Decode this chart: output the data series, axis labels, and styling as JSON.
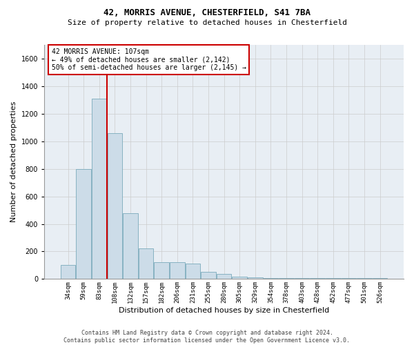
{
  "title1": "42, MORRIS AVENUE, CHESTERFIELD, S41 7BA",
  "title2": "Size of property relative to detached houses in Chesterfield",
  "xlabel": "Distribution of detached houses by size in Chesterfield",
  "ylabel": "Number of detached properties",
  "footer1": "Contains HM Land Registry data © Crown copyright and database right 2024.",
  "footer2": "Contains public sector information licensed under the Open Government Licence v3.0.",
  "annotation_title": "42 MORRIS AVENUE: 107sqm",
  "annotation_line1": "← 49% of detached houses are smaller (2,142)",
  "annotation_line2": "50% of semi-detached houses are larger (2,145) →",
  "bar_color": "#ccdce8",
  "bar_edge_color": "#7aaabb",
  "grid_color": "#cccccc",
  "bg_color": "#e8eef4",
  "vline_color": "#cc0000",
  "annotation_box_color": "#cc0000",
  "categories": [
    "34sqm",
    "59sqm",
    "83sqm",
    "108sqm",
    "132sqm",
    "157sqm",
    "182sqm",
    "206sqm",
    "231sqm",
    "255sqm",
    "280sqm",
    "305sqm",
    "329sqm",
    "354sqm",
    "378sqm",
    "403sqm",
    "428sqm",
    "452sqm",
    "477sqm",
    "501sqm",
    "526sqm"
  ],
  "values": [
    100,
    800,
    1310,
    1060,
    480,
    220,
    120,
    120,
    110,
    50,
    35,
    15,
    10,
    5,
    5,
    5,
    5,
    5,
    5,
    5,
    5
  ],
  "ylim": [
    0,
    1700
  ],
  "yticks": [
    0,
    200,
    400,
    600,
    800,
    1000,
    1200,
    1400,
    1600
  ],
  "vline_x": 2.5,
  "figsize": [
    6.0,
    5.0
  ],
  "dpi": 100
}
